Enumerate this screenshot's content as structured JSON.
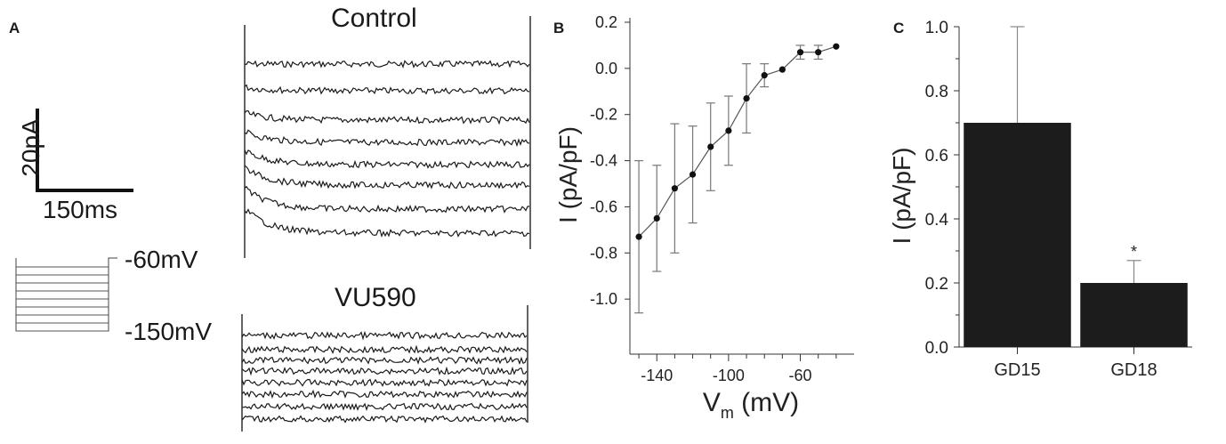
{
  "panels": {
    "a": {
      "label": "A",
      "scale_bar": {
        "current": "20pA",
        "time": "150ms"
      },
      "protocol": {
        "top": "-60mV",
        "bottom": "-150mV"
      },
      "traces": {
        "top_title": "Control",
        "bottom_title": "VU590"
      }
    },
    "b": {
      "label": "B"
    },
    "c": {
      "label": "C"
    }
  },
  "chart_data": [
    {
      "type": "line",
      "panel": "B",
      "xlabel": "V_m (mV)",
      "ylabel": "I (pA/pF)",
      "xlim": [
        -155,
        -25
      ],
      "ylim": [
        -1.2,
        0.2
      ],
      "xticks": [
        -140,
        -100,
        -60
      ],
      "yticks": [
        0.2,
        0.0,
        -0.2,
        -0.4,
        -0.6,
        -0.8,
        -1.0
      ],
      "series": [
        {
          "x": [
            -150,
            -140,
            -130,
            -120,
            -110,
            -100,
            -90,
            -80,
            -70,
            -60,
            -50,
            -40
          ],
          "y": [
            -0.73,
            -0.65,
            -0.52,
            -0.46,
            -0.34,
            -0.27,
            -0.13,
            -0.03,
            -0.005,
            0.07,
            0.07,
            0.095
          ],
          "err": [
            0.33,
            0.23,
            0.28,
            0.21,
            0.19,
            0.15,
            0.15,
            0.05,
            0.0,
            0.03,
            0.03,
            0.0
          ]
        }
      ]
    },
    {
      "type": "bar",
      "panel": "C",
      "categories": [
        "GD15",
        "GD18"
      ],
      "values": [
        0.7,
        0.2
      ],
      "err_upper": [
        0.3,
        0.07
      ],
      "annotations": [
        "",
        "*"
      ],
      "ylabel": "I (pA/pF)",
      "ylim": [
        0,
        1.0
      ],
      "yticks": [
        0.0,
        0.2,
        0.4,
        0.6,
        0.8,
        1.0
      ],
      "bar_color": "#1c1c1c"
    }
  ]
}
